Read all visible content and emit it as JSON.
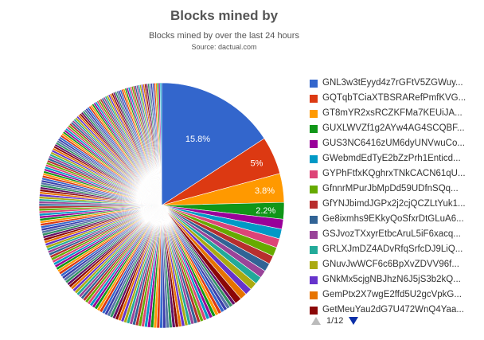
{
  "chart_data": {
    "type": "pie",
    "title": "Blocks mined by",
    "subtitle": "Blocks mined by over the last 24 hours",
    "source": "Source: dactual.com",
    "slices": [
      {
        "name": "GNL3w3tEyyd4z7rGFtV5ZGWuy...",
        "value": 15.8,
        "label": "15.8%",
        "color": "#3366cc"
      },
      {
        "name": "GQTqbTCiaXTBSRARefPmfKVG...",
        "value": 5.0,
        "label": "5%",
        "color": "#dc3912"
      },
      {
        "name": "GT8mYR2xsRCZKFMa7KEUiJA...",
        "value": 3.8,
        "label": "3.8%",
        "color": "#ff9900"
      },
      {
        "name": "GUXLWVZf1g2AYw4AG4SCQBF...",
        "value": 2.2,
        "label": "2.2%",
        "color": "#109618"
      },
      {
        "name": "GUS3NC6416zUM6dyUNVwuCo...",
        "value": 1.3,
        "label": "",
        "color": "#990099"
      },
      {
        "name": "GWebmdEdTyE2bZzPrh1Enticd...",
        "value": 1.3,
        "label": "",
        "color": "#0099c6"
      },
      {
        "name": "GYPhFtfxKQghrxTNkCACN61qU...",
        "value": 1.2,
        "label": "",
        "color": "#dd4477"
      },
      {
        "name": "GfnnrMPurJbMpDd59UDfnSQq...",
        "value": 1.2,
        "label": "",
        "color": "#66aa00"
      },
      {
        "name": "GfYNJbimdJGPx2j2cjQCZLtYuk1...",
        "value": 1.1,
        "label": "",
        "color": "#b82e2e"
      },
      {
        "name": "Ge8ixmhs9EKkyQoSfxrDtGLuA6...",
        "value": 1.1,
        "label": "",
        "color": "#316395"
      },
      {
        "name": "GSJvozTXxyrEtbcAruL5iF6xacq...",
        "value": 1.0,
        "label": "",
        "color": "#994499"
      },
      {
        "name": "GRLXJmDZ4ADvRfqSrfcDJ9LiQ...",
        "value": 1.0,
        "label": "",
        "color": "#22aa99"
      },
      {
        "name": "GNuvJwWCF6c6BpXvZDVV96f...",
        "value": 1.0,
        "label": "",
        "color": "#aaaa11"
      },
      {
        "name": "GNkMx5cjgNBJhzN6J5jS3b2kQ...",
        "value": 0.9,
        "label": "",
        "color": "#6633cc"
      },
      {
        "name": "GemPtx2X7wgE2ffd5U2gcVpkG...",
        "value": 0.9,
        "label": "",
        "color": "#e67300"
      },
      {
        "name": "GetMeuYau2dG7U472WnQ4Yaa...",
        "value": 0.9,
        "label": "",
        "color": "#8b0707"
      }
    ],
    "remainder": {
      "slice_count": 190,
      "color_cycle": [
        "#3366cc",
        "#dc3912",
        "#ff9900",
        "#109618",
        "#990099",
        "#0099c6",
        "#dd4477",
        "#66aa00",
        "#b82e2e",
        "#316395",
        "#994499",
        "#22aa99",
        "#aaaa11",
        "#6633cc",
        "#e67300",
        "#8b0707",
        "#651067",
        "#329262",
        "#5574a6",
        "#3b3eac"
      ]
    },
    "legend_position": "right"
  },
  "legend": {
    "page_text": "1/12"
  }
}
